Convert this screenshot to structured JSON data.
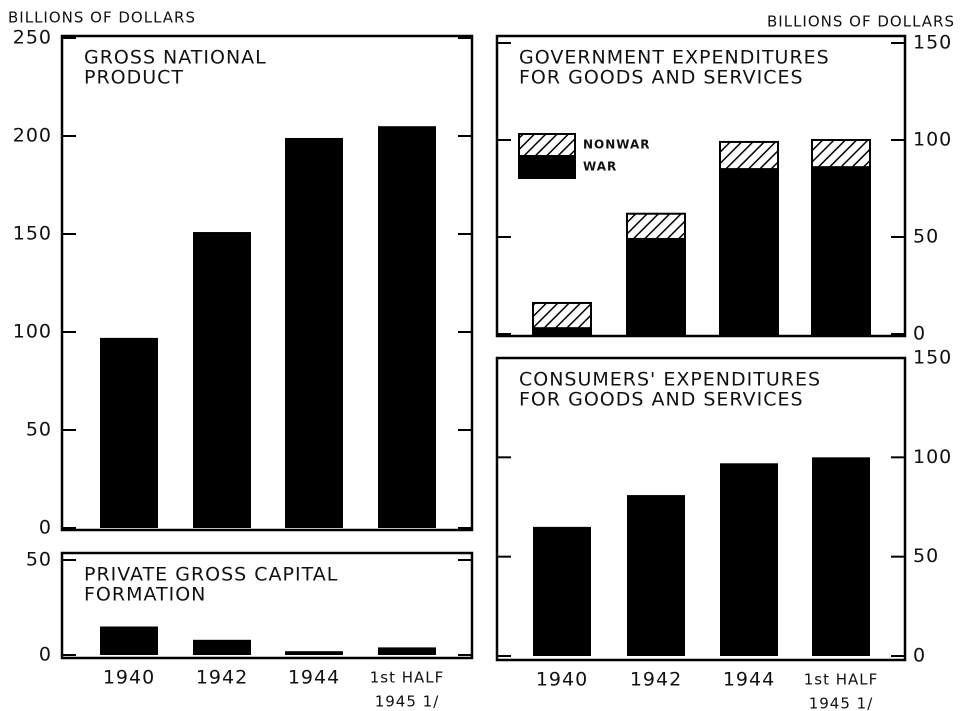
{
  "chart_data": [
    {
      "type": "bar",
      "title": [
        "GROSS NATIONAL",
        "PRODUCT"
      ],
      "y_label": "BILLIONS OF DOLLARS",
      "categories": [
        null,
        null,
        null,
        null
      ],
      "values": [
        97,
        151,
        199,
        205
      ],
      "color": "#000000",
      "ylim": [
        0,
        250
      ],
      "yticks": [
        0,
        50,
        100,
        150,
        200,
        250
      ]
    },
    {
      "type": "bar",
      "title": [
        "PRIVATE GROSS CAPITAL",
        "FORMATION"
      ],
      "categories": [
        [
          "1940"
        ],
        [
          "1942"
        ],
        [
          "1944"
        ],
        [
          "1st HALF",
          "1945 1/"
        ]
      ],
      "values": [
        15,
        8,
        2,
        4
      ],
      "color": "#000000",
      "ylim": [
        0,
        50
      ],
      "yticks": [
        0,
        50
      ]
    },
    {
      "type": "stacked_bar",
      "title": [
        "GOVERNMENT EXPENDITURES",
        "FOR GOODS AND SERVICES"
      ],
      "y_label": "BILLIONS OF DOLLARS",
      "categories": [
        null,
        null,
        null,
        null
      ],
      "series": [
        {
          "name": "WAR",
          "color": "#000000",
          "values": [
            3,
            49,
            85,
            86
          ]
        },
        {
          "name": "NONWAR",
          "color": "#ffffff",
          "hatch": true,
          "values": [
            13,
            13,
            14,
            14
          ]
        }
      ],
      "legend": "upper left",
      "ylim": [
        0,
        150
      ],
      "yticks": [
        0,
        50,
        100,
        150
      ]
    },
    {
      "type": "bar",
      "title": [
        "CONSUMERS' EXPENDITURES",
        "FOR GOODS AND SERVICES"
      ],
      "categories": [
        [
          "1940"
        ],
        [
          "1942"
        ],
        [
          "1944"
        ],
        [
          "1st HALF",
          "1945 1/"
        ]
      ],
      "values": [
        65,
        81,
        97,
        100
      ],
      "color": "#000000",
      "ylim": [
        0,
        150
      ],
      "yticks": [
        0,
        50,
        100,
        150
      ]
    }
  ]
}
